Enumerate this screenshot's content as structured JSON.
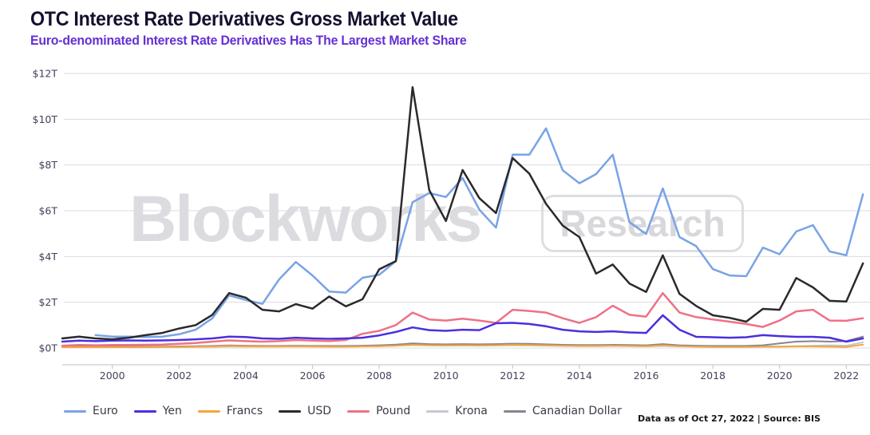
{
  "header": {
    "title": "OTC Interest Rate Derivatives Gross Market Value",
    "subtitle": "Euro-denominated Interest Rate Derivatives Has The Largest Market Share"
  },
  "watermark": {
    "brand": "Blockworks",
    "label": "Research"
  },
  "footer": {
    "note": "Data as of Oct 27, 2022 | Source: BIS"
  },
  "colors": {
    "title": "#13102e",
    "subtitle": "#6430d4",
    "gridline": "#dbdbe0",
    "axis_spine": "#c9c9d3",
    "tick_label": "#42425a",
    "watermark": "#dcdce0"
  },
  "chart_data": {
    "type": "line",
    "title": "OTC Interest Rate Derivatives Gross Market Value",
    "subtitle": "Euro-denominated Interest Rate Derivatives Has The Largest Market Share",
    "unit": "trillions USD",
    "ylim": [
      0,
      12
    ],
    "grid": true,
    "legend_position": "bottom",
    "y_ticks": [
      "$0T",
      "$2T",
      "$4T",
      "$6T",
      "$8T",
      "$10T",
      "$12T"
    ],
    "x_ticks": [
      "2000",
      "2002",
      "2004",
      "2006",
      "2008",
      "2010",
      "2012",
      "2014",
      "2016",
      "2018",
      "2020",
      "2022"
    ],
    "x_tick_years": [
      2000,
      2002,
      2004,
      2006,
      2008,
      2010,
      2012,
      2014,
      2016,
      2018,
      2020,
      2022
    ],
    "periods": [
      "1998 H1",
      "1998 H2",
      "1999 H1",
      "1999 H2",
      "2000 H1",
      "2000 H2",
      "2001 H1",
      "2001 H2",
      "2002 H1",
      "2002 H2",
      "2003 H1",
      "2003 H2",
      "2004 H1",
      "2004 H2",
      "2005 H1",
      "2005 H2",
      "2006 H1",
      "2006 H2",
      "2007 H1",
      "2007 H2",
      "2008 H1",
      "2008 H2",
      "2009 H1",
      "2009 H2",
      "2010 H1",
      "2010 H2",
      "2011 H1",
      "2011 H2",
      "2012 H1",
      "2012 H2",
      "2013 H1",
      "2013 H2",
      "2014 H1",
      "2014 H2",
      "2015 H1",
      "2015 H2",
      "2016 H1",
      "2016 H2",
      "2017 H1",
      "2017 H2",
      "2018 H1",
      "2018 H2",
      "2019 H1",
      "2019 H2",
      "2020 H1",
      "2020 H2",
      "2021 H1",
      "2021 H2",
      "2022 H1"
    ],
    "series": [
      {
        "name": "Euro",
        "color": "#79a3e6",
        "values": [
          null,
          null,
          0.56,
          0.5,
          0.5,
          0.48,
          0.5,
          0.6,
          0.8,
          1.3,
          2.3,
          2.1,
          1.93,
          3.0,
          3.76,
          3.17,
          2.47,
          2.42,
          3.07,
          3.2,
          3.8,
          6.37,
          6.77,
          6.6,
          7.43,
          6.05,
          5.26,
          8.45,
          8.45,
          9.6,
          7.77,
          7.2,
          7.6,
          8.45,
          5.5,
          4.98,
          6.97,
          4.85,
          4.45,
          3.45,
          3.17,
          3.14,
          4.39,
          4.1,
          5.09,
          5.37,
          4.22,
          4.05,
          6.72
        ]
      },
      {
        "name": "Yen",
        "color": "#4a30dd",
        "values": [
          0.28,
          0.32,
          0.3,
          0.32,
          0.33,
          0.32,
          0.33,
          0.35,
          0.38,
          0.42,
          0.5,
          0.48,
          0.42,
          0.4,
          0.45,
          0.42,
          0.4,
          0.42,
          0.45,
          0.55,
          0.7,
          0.9,
          0.78,
          0.75,
          0.8,
          0.78,
          1.08,
          1.1,
          1.05,
          0.95,
          0.8,
          0.73,
          0.7,
          0.73,
          0.68,
          0.66,
          1.43,
          0.8,
          0.49,
          0.47,
          0.45,
          0.47,
          0.56,
          0.52,
          0.49,
          0.49,
          0.45,
          0.28,
          0.42
        ]
      },
      {
        "name": "Francs",
        "color": "#f3a63a",
        "values": [
          0.04,
          0.04,
          0.04,
          0.04,
          0.04,
          0.04,
          0.05,
          0.05,
          0.06,
          0.07,
          0.09,
          0.08,
          0.07,
          0.07,
          0.08,
          0.07,
          0.06,
          0.06,
          0.07,
          0.08,
          0.1,
          0.14,
          0.12,
          0.11,
          0.12,
          0.11,
          0.12,
          0.14,
          0.13,
          0.12,
          0.1,
          0.09,
          0.09,
          0.1,
          0.09,
          0.08,
          0.12,
          0.08,
          0.06,
          0.05,
          0.05,
          0.05,
          0.06,
          0.06,
          0.07,
          0.07,
          0.06,
          0.05,
          0.15
        ]
      },
      {
        "name": "USD",
        "color": "#2a2a2e",
        "values": [
          0.42,
          0.5,
          0.42,
          0.38,
          0.45,
          0.56,
          0.66,
          0.85,
          1.0,
          1.45,
          2.4,
          2.2,
          1.67,
          1.6,
          1.92,
          1.72,
          2.25,
          1.82,
          2.13,
          3.44,
          3.8,
          11.4,
          6.9,
          5.55,
          7.78,
          6.55,
          5.9,
          8.3,
          7.62,
          6.3,
          5.35,
          4.85,
          3.25,
          3.65,
          2.82,
          2.45,
          4.05,
          2.37,
          1.84,
          1.43,
          1.32,
          1.15,
          1.71,
          1.67,
          3.06,
          2.65,
          2.06,
          2.03,
          3.7
        ]
      },
      {
        "name": "Pound",
        "color": "#ed7285",
        "values": [
          0.1,
          0.13,
          0.12,
          0.13,
          0.13,
          0.14,
          0.15,
          0.18,
          0.22,
          0.28,
          0.33,
          0.3,
          0.28,
          0.3,
          0.35,
          0.32,
          0.3,
          0.35,
          0.62,
          0.75,
          1.0,
          1.55,
          1.25,
          1.2,
          1.28,
          1.2,
          1.1,
          1.67,
          1.62,
          1.55,
          1.3,
          1.1,
          1.35,
          1.85,
          1.45,
          1.37,
          2.4,
          1.55,
          1.35,
          1.25,
          1.15,
          1.05,
          0.92,
          1.2,
          1.6,
          1.67,
          1.2,
          1.19,
          1.3
        ]
      },
      {
        "name": "Krona",
        "color": "#c8c8d2",
        "values": [
          0.03,
          0.03,
          0.03,
          0.03,
          0.03,
          0.03,
          0.04,
          0.04,
          0.05,
          0.05,
          0.07,
          0.06,
          0.06,
          0.06,
          0.07,
          0.06,
          0.06,
          0.06,
          0.07,
          0.08,
          0.1,
          0.13,
          0.11,
          0.1,
          0.11,
          0.1,
          0.11,
          0.12,
          0.11,
          0.1,
          0.09,
          0.08,
          0.08,
          0.09,
          0.08,
          0.07,
          0.09,
          0.07,
          0.06,
          0.05,
          0.05,
          0.05,
          0.06,
          0.06,
          0.08,
          0.1,
          0.12,
          0.1,
          0.25
        ]
      },
      {
        "name": "Canadian Dollar",
        "color": "#85858f",
        "values": [
          0.05,
          0.06,
          0.05,
          0.06,
          0.06,
          0.06,
          0.06,
          0.07,
          0.08,
          0.09,
          0.11,
          0.1,
          0.09,
          0.09,
          0.1,
          0.09,
          0.09,
          0.09,
          0.1,
          0.12,
          0.15,
          0.2,
          0.17,
          0.16,
          0.17,
          0.16,
          0.17,
          0.19,
          0.18,
          0.16,
          0.14,
          0.13,
          0.13,
          0.14,
          0.13,
          0.12,
          0.17,
          0.12,
          0.1,
          0.09,
          0.09,
          0.09,
          0.12,
          0.2,
          0.28,
          0.3,
          0.28,
          0.3,
          0.5
        ]
      }
    ],
    "draw_order": [
      "Krona",
      "Canadian Dollar",
      "Francs",
      "Pound",
      "Yen",
      "Euro",
      "USD"
    ]
  },
  "legend": {
    "items": [
      {
        "label": "Euro",
        "color": "#79a3e6"
      },
      {
        "label": "Yen",
        "color": "#4a30dd"
      },
      {
        "label": "Francs",
        "color": "#f3a63a"
      },
      {
        "label": "USD",
        "color": "#2a2a2e"
      },
      {
        "label": "Pound",
        "color": "#ed7285"
      },
      {
        "label": "Krona",
        "color": "#c8c8d2"
      },
      {
        "label": "Canadian Dollar",
        "color": "#85858f"
      }
    ]
  }
}
